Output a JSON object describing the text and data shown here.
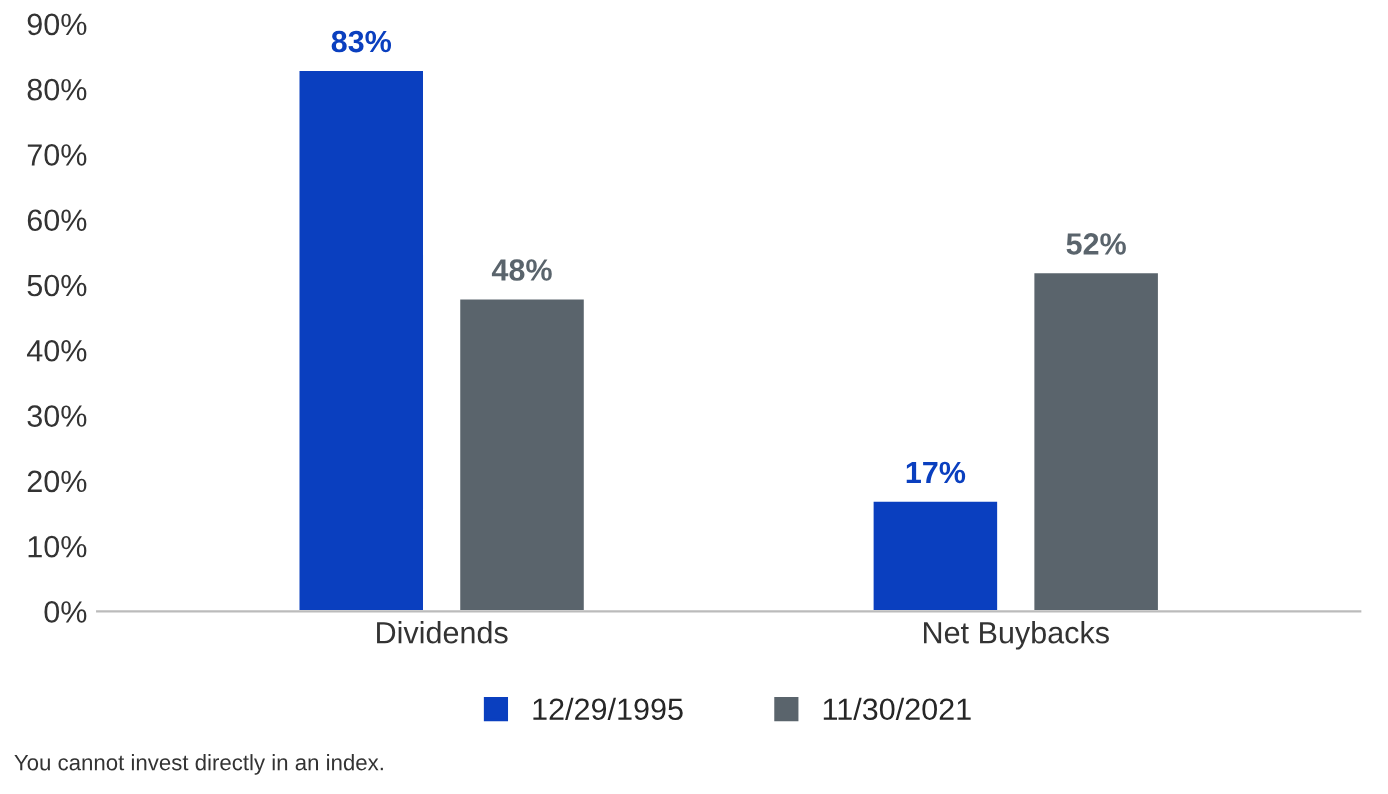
{
  "chart_data": {
    "type": "bar",
    "categories": [
      "Dividends",
      "Net Buybacks"
    ],
    "series": [
      {
        "name": "12/29/1995",
        "color": "#0a3fbf",
        "values": [
          83,
          17
        ],
        "value_labels": [
          "83%",
          "17%"
        ]
      },
      {
        "name": "11/30/2021",
        "color": "#5a646c",
        "values": [
          48,
          52
        ],
        "value_labels": [
          "48%",
          "52%"
        ]
      }
    ],
    "ylim": [
      0,
      90
    ],
    "yticks": [
      {
        "value": 0,
        "label": "0%"
      },
      {
        "value": 10,
        "label": "10%"
      },
      {
        "value": 20,
        "label": "20%"
      },
      {
        "value": 30,
        "label": "30%"
      },
      {
        "value": 40,
        "label": "40%"
      },
      {
        "value": 50,
        "label": "50%"
      },
      {
        "value": 60,
        "label": "60%"
      },
      {
        "value": 70,
        "label": "70%"
      },
      {
        "value": 80,
        "label": "80%"
      },
      {
        "value": 90,
        "label": "90%"
      }
    ],
    "grid": false,
    "legend": "bottom",
    "annotations": [
      "You cannot invest directly in an index."
    ]
  }
}
